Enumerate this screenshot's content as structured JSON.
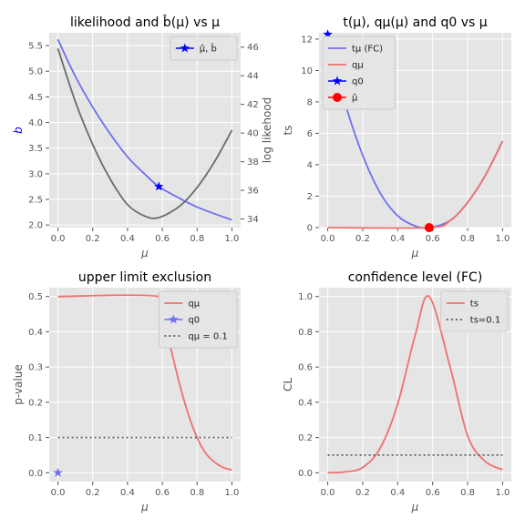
{
  "chart_data": [
    {
      "id": "p1",
      "type": "line",
      "title": "likelihood and b̂(μ) vs μ",
      "xlabel": "μ",
      "ylabel": "b",
      "ylabel_right": "log likehood",
      "xlim": [
        -0.05,
        1.05
      ],
      "ylim": [
        1.95,
        5.75
      ],
      "ylim_right": [
        33.4,
        47.0
      ],
      "xticks": [
        0.0,
        0.2,
        0.4,
        0.6,
        0.8,
        1.0
      ],
      "xtick_labels": [
        "0.0",
        "0.2",
        "0.4",
        "0.6",
        "0.8",
        "1.0"
      ],
      "yticks": [
        2.0,
        2.5,
        3.0,
        3.5,
        4.0,
        4.5,
        5.0,
        5.5
      ],
      "ytick_labels": [
        "2.0",
        "2.5",
        "3.0",
        "3.5",
        "4.0",
        "4.5",
        "5.0",
        "5.5"
      ],
      "yticks_right": [
        34,
        36,
        38,
        40,
        42,
        44,
        46
      ],
      "ytick_labels_right": [
        "34",
        "36",
        "38",
        "40",
        "42",
        "44",
        "46"
      ],
      "legend": {
        "position": "top-right",
        "entries": [
          {
            "label": "μ̂, b̂",
            "marker": "star",
            "color": "#0000ff"
          }
        ]
      },
      "series": [
        {
          "axis": "left",
          "color": "#6f6ff0",
          "x": [
            0.0,
            0.1,
            0.2,
            0.3,
            0.4,
            0.5,
            0.58,
            0.7,
            0.8,
            0.9,
            1.0
          ],
          "y": [
            5.62,
            4.9,
            4.3,
            3.78,
            3.33,
            2.99,
            2.75,
            2.52,
            2.35,
            2.22,
            2.1
          ]
        },
        {
          "axis": "right",
          "color": "#6b6b6b",
          "x": [
            0.0,
            0.1,
            0.2,
            0.3,
            0.4,
            0.5,
            0.58,
            0.7,
            0.8,
            0.9,
            1.0
          ],
          "y": [
            45.9,
            42.2,
            39.2,
            36.8,
            35.0,
            34.2,
            34.1,
            34.9,
            36.2,
            38.0,
            40.2
          ]
        }
      ],
      "points": [
        {
          "axis": "left",
          "x": 0.58,
          "y": 2.75,
          "marker": "star",
          "color": "#0000ff"
        }
      ]
    },
    {
      "id": "p2",
      "type": "line",
      "title": "t(μ), qμ(μ) and q0 vs μ",
      "xlabel": "μ",
      "ylabel": "ts",
      "xlim": [
        -0.05,
        1.05
      ],
      "ylim": [
        0,
        12.4
      ],
      "xticks": [
        0.0,
        0.2,
        0.4,
        0.6,
        0.8,
        1.0
      ],
      "xtick_labels": [
        "0.0",
        "0.2",
        "0.4",
        "0.6",
        "0.8",
        "1.0"
      ],
      "yticks": [
        0,
        2,
        4,
        6,
        8,
        10,
        12
      ],
      "ytick_labels": [
        "0",
        "2",
        "4",
        "6",
        "8",
        "10",
        "12"
      ],
      "legend": {
        "position": "top-left",
        "entries": [
          {
            "label": "tμ (FC)",
            "line": "solid",
            "color": "#6f6ff0"
          },
          {
            "label": "qμ",
            "line": "solid",
            "color": "#f07070"
          },
          {
            "label": "q0",
            "marker": "star",
            "color": "#0000ff"
          },
          {
            "label": "μ̂",
            "marker": "circle",
            "color": "#ff0000"
          }
        ]
      },
      "series": [
        {
          "color": "#6f6ff0",
          "x": [
            0.0,
            0.1,
            0.2,
            0.3,
            0.4,
            0.5,
            0.58,
            0.7,
            0.8,
            0.9,
            1.0
          ],
          "y": [
            12.3,
            7.9,
            4.6,
            2.2,
            0.75,
            0.1,
            0.0,
            0.45,
            1.6,
            3.3,
            5.5
          ]
        },
        {
          "color": "#f07070",
          "x": [
            0.0,
            0.58,
            0.7,
            0.8,
            0.9,
            1.0
          ],
          "y": [
            0.0,
            0.0,
            0.45,
            1.6,
            3.3,
            5.5
          ]
        }
      ],
      "points": [
        {
          "x": 0.0,
          "y": 12.3,
          "marker": "star",
          "color": "#0000ff"
        },
        {
          "x": 0.58,
          "y": 0.0,
          "marker": "circle",
          "color": "#ff0000"
        }
      ]
    },
    {
      "id": "p3",
      "type": "line",
      "title": "upper limit exclusion",
      "xlabel": "μ",
      "ylabel": "p-value",
      "xlim": [
        -0.05,
        1.05
      ],
      "ylim": [
        -0.025,
        0.525
      ],
      "xticks": [
        0.0,
        0.2,
        0.4,
        0.6,
        0.8,
        1.0
      ],
      "xtick_labels": [
        "0.0",
        "0.2",
        "0.4",
        "0.6",
        "0.8",
        "1.0"
      ],
      "yticks": [
        0.0,
        0.1,
        0.2,
        0.3,
        0.4,
        0.5
      ],
      "ytick_labels": [
        "0.0",
        "0.1",
        "0.2",
        "0.3",
        "0.4",
        "0.5"
      ],
      "legend": {
        "position": "top-right",
        "entries": [
          {
            "label": "qμ",
            "line": "solid",
            "color": "#f07070"
          },
          {
            "label": "q0",
            "marker": "star",
            "color": "#6f6ff0"
          },
          {
            "label": "qμ = 0.1",
            "line": "dotted",
            "color": "#555555"
          }
        ]
      },
      "series": [
        {
          "color": "#f07070",
          "x": [
            0.0,
            0.58,
            0.6,
            0.65,
            0.7,
            0.75,
            0.8,
            0.85,
            0.9,
            0.95,
            1.0
          ],
          "y": [
            0.5,
            0.5,
            0.45,
            0.35,
            0.25,
            0.165,
            0.1,
            0.055,
            0.03,
            0.015,
            0.008
          ]
        },
        {
          "color": "#555555",
          "dash": "dotted",
          "x": [
            0.0,
            1.0
          ],
          "y": [
            0.1,
            0.1
          ]
        }
      ],
      "points": [
        {
          "x": 0.0,
          "y": 0.0,
          "marker": "star",
          "color": "#6f6ff0"
        }
      ]
    },
    {
      "id": "p4",
      "type": "line",
      "title": "confidence level (FC)",
      "xlabel": "μ",
      "ylabel": "CL",
      "xlim": [
        -0.05,
        1.05
      ],
      "ylim": [
        -0.05,
        1.05
      ],
      "xticks": [
        0.0,
        0.2,
        0.4,
        0.6,
        0.8,
        1.0
      ],
      "xtick_labels": [
        "0.0",
        "0.2",
        "0.4",
        "0.6",
        "0.8",
        "1.0"
      ],
      "yticks": [
        0.0,
        0.2,
        0.4,
        0.6,
        0.8,
        1.0
      ],
      "ytick_labels": [
        "0.0",
        "0.2",
        "0.4",
        "0.6",
        "0.8",
        "1.0"
      ],
      "legend": {
        "position": "top-right",
        "entries": [
          {
            "label": "ts",
            "line": "solid",
            "color": "#f07070"
          },
          {
            "label": "ts=0.1",
            "line": "dotted",
            "color": "#555555"
          }
        ]
      },
      "series": [
        {
          "color": "#f07070",
          "x": [
            0.0,
            0.1,
            0.2,
            0.3,
            0.4,
            0.5,
            0.58,
            0.7,
            0.8,
            0.9,
            1.0
          ],
          "y": [
            0.0,
            0.005,
            0.03,
            0.14,
            0.39,
            0.78,
            1.0,
            0.6,
            0.21,
            0.065,
            0.018
          ]
        },
        {
          "color": "#555555",
          "dash": "dotted",
          "x": [
            0.0,
            1.0
          ],
          "y": [
            0.1,
            0.1
          ]
        }
      ]
    }
  ]
}
